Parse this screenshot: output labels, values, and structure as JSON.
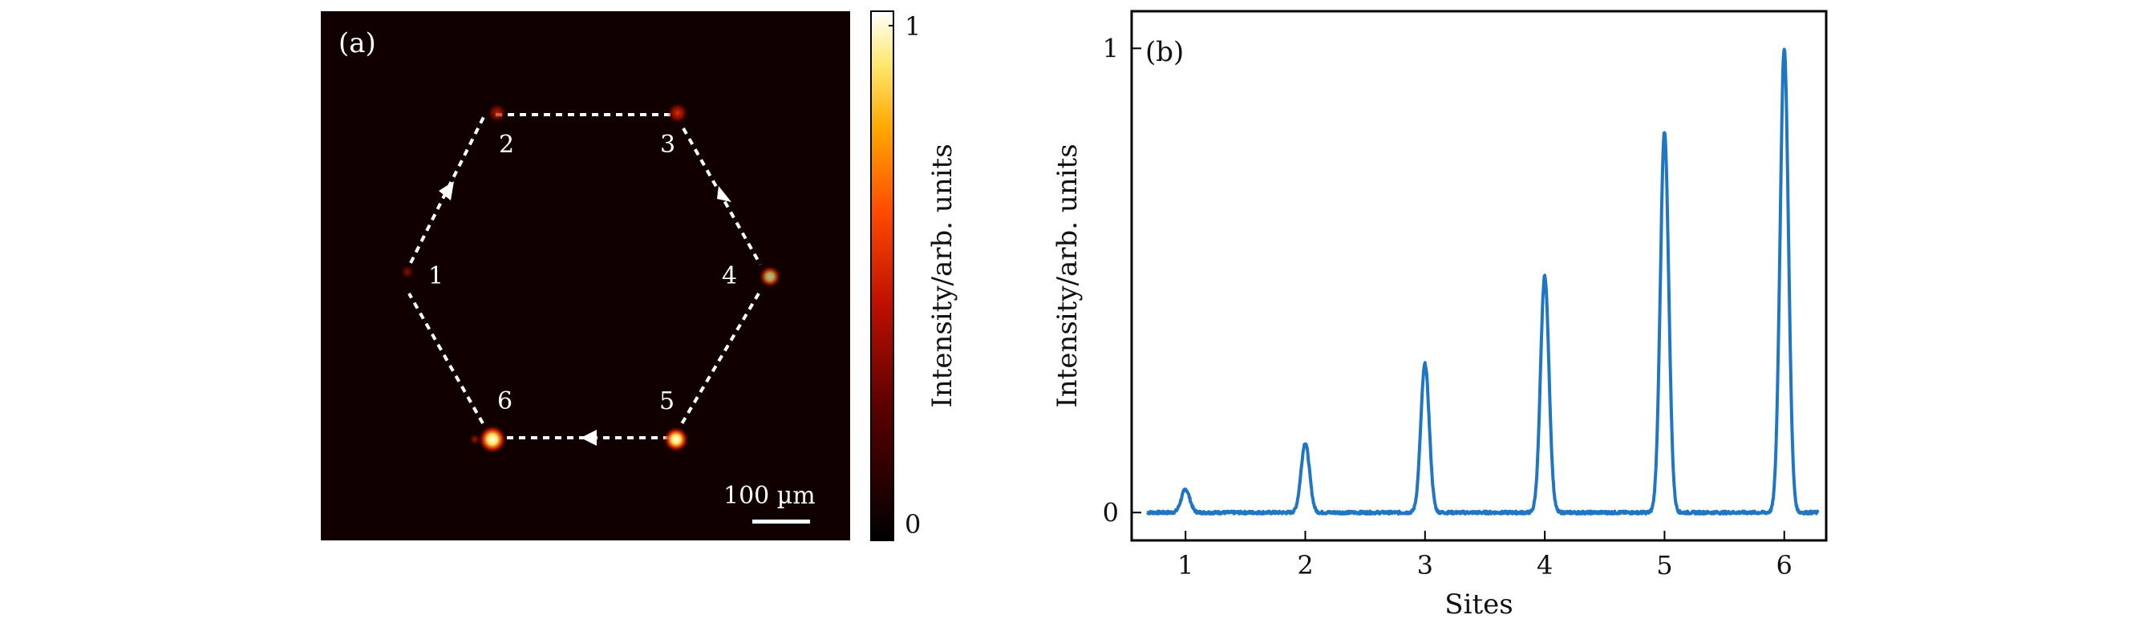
{
  "panel_a": {
    "label": "(a)",
    "scale_bar_label": "100 µm",
    "sites": [
      {
        "label": "1",
        "intensity": 0.05
      },
      {
        "label": "2",
        "intensity": 0.15
      },
      {
        "label": "3",
        "intensity": 0.32
      },
      {
        "label": "4",
        "intensity": 0.5
      },
      {
        "label": "5",
        "intensity": 0.8
      },
      {
        "label": "6",
        "intensity": 1.0
      }
    ],
    "colorbar": {
      "label": "Intensity/arb. units",
      "max_label": "1",
      "min_label": "0"
    }
  },
  "chart_data": {
    "type": "line",
    "panel_label": "(b)",
    "xlabel": "Sites",
    "ylabel": "Intensity/arb. units",
    "xlim": [
      0.55,
      6.35
    ],
    "ylim": [
      -0.06,
      1.08
    ],
    "xticks": [
      1,
      2,
      3,
      4,
      5,
      6
    ],
    "yticks": [
      0,
      1
    ],
    "color": "#1f77c4",
    "series": [
      {
        "peaks": [
          {
            "site": 1,
            "value": 0.05
          },
          {
            "site": 2,
            "value": 0.15
          },
          {
            "site": 3,
            "value": 0.32
          },
          {
            "site": 4,
            "value": 0.51
          },
          {
            "site": 5,
            "value": 0.82
          },
          {
            "site": 6,
            "value": 1.0
          }
        ],
        "baseline": 0.0,
        "x_start": 0.68,
        "x_end": 6.28
      }
    ]
  }
}
